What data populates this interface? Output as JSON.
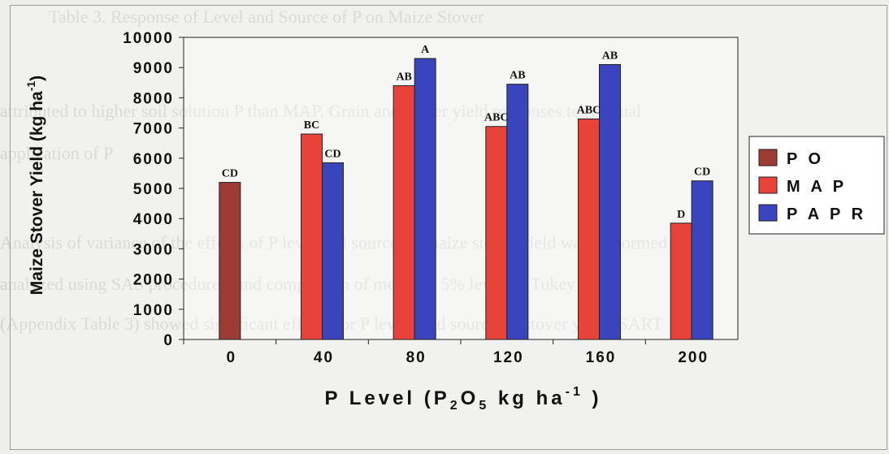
{
  "page": {
    "background_lines": [
      "Table 3. Response of Level and Source of P on Maize Stover",
      "attributed to higher soil solution P than MAP. Grain and stover yield responses to residual",
      "application of P",
      "Analysis of variance of the effects of P level and source on maize stover yield was performed",
      "analyzed using SAS procedures, and comparison of means at 5% level by Tukey",
      "(Appendix Table 3) showed significant effects for P levels and source on stover yield (SART"
    ]
  },
  "chart_data": {
    "type": "bar",
    "title": "",
    "ylabel": "Maize Stover Yield (kg ha-1)",
    "xlabel": "P Level (P2O5 kg ha-1 )",
    "ylim": [
      0,
      10000
    ],
    "yticks": [
      "0",
      "1000",
      "2000",
      "3000",
      "4000",
      "5000",
      "6000",
      "7000",
      "8000",
      "9000",
      "10000"
    ],
    "categories": [
      "0",
      "40",
      "80",
      "120",
      "160",
      "200"
    ],
    "grid": false,
    "legend_position": "right",
    "series": [
      {
        "name": "P O",
        "color": "#9b3b33",
        "values": [
          5200,
          null,
          null,
          null,
          null,
          null
        ],
        "labels": [
          "CD",
          "",
          "",
          "",
          "",
          ""
        ]
      },
      {
        "name": "M A P",
        "color": "#e8433a",
        "values": [
          null,
          6800,
          8400,
          7050,
          7300,
          3850
        ],
        "labels": [
          "",
          "BC",
          "AB",
          "ABC",
          "ABC",
          "D"
        ]
      },
      {
        "name": "P A P R",
        "color": "#3a44bc",
        "values": [
          null,
          5850,
          9300,
          8450,
          9100,
          5250
        ],
        "labels": [
          "",
          "CD",
          "A",
          "AB",
          "AB",
          "CD"
        ]
      }
    ]
  }
}
